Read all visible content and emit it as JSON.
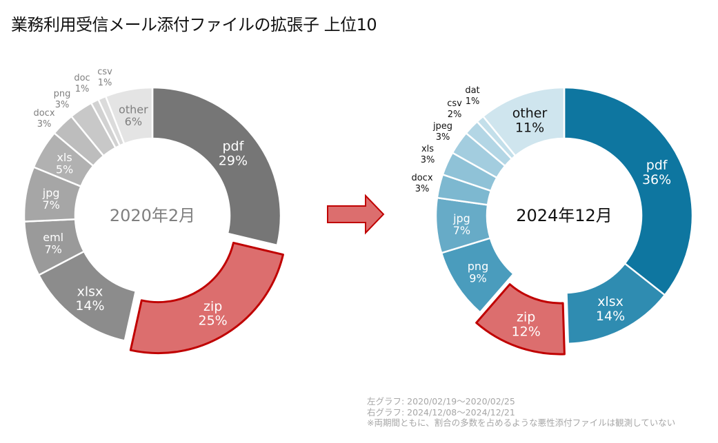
{
  "title": "業務利用受信メール添付ファイルの拡張子 上位10",
  "notes": [
    "左グラフ: 2020/02/19〜2020/02/25",
    "右グラフ: 2024/12/08〜2024/12/21",
    "※両期間ともに、割合の多数を占めるような悪性添付ファイルは観測していない"
  ],
  "arrow": {
    "icon": "right-arrow-icon",
    "fill": "#dc6e6e",
    "stroke": "#c00000"
  },
  "chart_data": [
    {
      "type": "pie",
      "variant": "donut",
      "center_label": "2020年2月",
      "highlight": "zip",
      "highlight_color": "#dc6e6e",
      "highlight_stroke": "#c00000",
      "categories": [
        "pdf",
        "zip",
        "xlsx",
        "eml",
        "jpg",
        "xls",
        "docx",
        "png",
        "doc",
        "csv",
        "other"
      ],
      "values": [
        29,
        25,
        14,
        7,
        7,
        5,
        3,
        3,
        1,
        1,
        6
      ],
      "labels": [
        "29%",
        "25%",
        "14%",
        "7%",
        "7%",
        "5%",
        "3%",
        "3%",
        "1%",
        "1%",
        "6%"
      ],
      "colors": [
        "#767676",
        "#dc6e6e",
        "#8c8c8c",
        "#9a9a9a",
        "#a6a6a6",
        "#b1b1b1",
        "#bdbdbd",
        "#c8c8c8",
        "#d2d2d2",
        "#dbdbdb",
        "#e4e4e4"
      ],
      "label_colors": [
        "#ffffff",
        "#ffffff",
        "#ffffff",
        "#ffffff",
        "#ffffff",
        "#ffffff",
        "#7f7f7f",
        "#7f7f7f",
        "#7f7f7f",
        "#7f7f7f",
        "#7f7f7f"
      ],
      "outside_labels": [
        "docx",
        "png",
        "doc",
        "csv"
      ],
      "center_label_color": "#7f7f7f"
    },
    {
      "type": "pie",
      "variant": "donut",
      "center_label": "2024年12月",
      "highlight": "zip",
      "highlight_color": "#dc6e6e",
      "highlight_stroke": "#c00000",
      "categories": [
        "pdf",
        "xlsx",
        "zip",
        "png",
        "jpg",
        "docx",
        "xls",
        "jpeg",
        "csv",
        "dat",
        "other"
      ],
      "values": [
        36,
        14,
        12,
        9,
        7,
        3,
        3,
        3,
        2,
        1,
        11
      ],
      "labels": [
        "36%",
        "14%",
        "12%",
        "9%",
        "7%",
        "3%",
        "3%",
        "3%",
        "2%",
        "1%",
        "11%"
      ],
      "colors": [
        "#0e76a0",
        "#2f8cb1",
        "#dc6e6e",
        "#4a9cbd",
        "#67abc7",
        "#7db8d0",
        "#8fc2d7",
        "#a3cddf",
        "#b3d6e5",
        "#c3dfea",
        "#cfe5ee"
      ],
      "label_colors": [
        "#ffffff",
        "#ffffff",
        "#ffffff",
        "#ffffff",
        "#ffffff",
        "#111111",
        "#111111",
        "#111111",
        "#111111",
        "#111111",
        "#111111"
      ],
      "outside_labels": [
        "docx",
        "xls",
        "jpeg",
        "csv",
        "dat"
      ],
      "center_label_color": "#111111"
    }
  ]
}
